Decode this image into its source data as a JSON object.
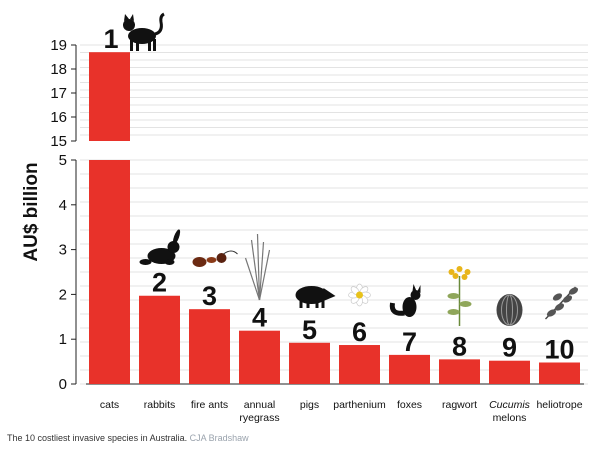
{
  "chart_data": {
    "type": "bar",
    "ylabel": "AU$ billion",
    "y_break": {
      "lower_range": [
        0,
        5
      ],
      "upper_range": [
        15,
        19
      ]
    },
    "lower_ticks": [
      "0",
      "1",
      "2",
      "3",
      "4",
      "5"
    ],
    "upper_ticks": [
      "15",
      "16",
      "17",
      "18",
      "19"
    ],
    "categories": [
      {
        "name": "cats",
        "line1": "cats",
        "line2": "",
        "italic_line1": false
      },
      {
        "name": "rabbits",
        "line1": "rabbits",
        "line2": "",
        "italic_line1": false
      },
      {
        "name": "fire ants",
        "line1": "fire ants",
        "line2": "",
        "italic_line1": false
      },
      {
        "name": "annual ryegrass",
        "line1": "annual",
        "line2": "ryegrass",
        "italic_line1": false
      },
      {
        "name": "pigs",
        "line1": "pigs",
        "line2": "",
        "italic_line1": false
      },
      {
        "name": "parthenium",
        "line1": "parthenium",
        "line2": "",
        "italic_line1": false
      },
      {
        "name": "foxes",
        "line1": "foxes",
        "line2": "",
        "italic_line1": false
      },
      {
        "name": "ragwort",
        "line1": "ragwort",
        "line2": "",
        "italic_line1": false
      },
      {
        "name": "Cucumis melons",
        "line1": "Cucumis",
        "line2": "melons",
        "italic_line1": true
      },
      {
        "name": "heliotrope",
        "line1": "heliotrope",
        "line2": "",
        "italic_line1": false
      }
    ],
    "ranks": [
      "1",
      "2",
      "3",
      "4",
      "5",
      "6",
      "7",
      "8",
      "9",
      "10"
    ],
    "values": [
      18.7,
      1.97,
      1.67,
      1.19,
      0.92,
      0.87,
      0.65,
      0.55,
      0.52,
      0.48
    ],
    "bar_color": "#e8322a",
    "icons": [
      "cat-icon",
      "rabbit-icon",
      "fire-ant-icon",
      "ryegrass-icon",
      "pig-icon",
      "parthenium-flower-icon",
      "fox-icon",
      "ragwort-icon",
      "melon-icon",
      "heliotrope-icon"
    ],
    "grid": true
  },
  "caption": {
    "text": "The 10 costliest invasive species in Australia.",
    "credit": "CJA Bradshaw"
  }
}
